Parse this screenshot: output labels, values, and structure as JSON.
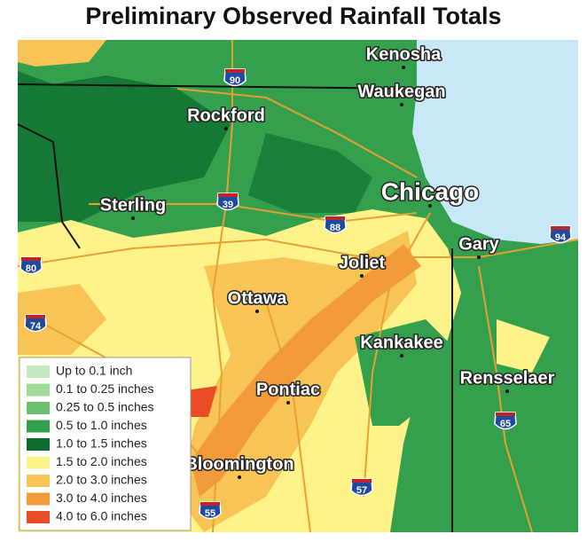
{
  "header": {
    "title": "Preliminary Observed Rainfall Totals"
  },
  "cities": [
    {
      "label": "Kenosha"
    },
    {
      "label": "Waukegan"
    },
    {
      "label": "Rockford"
    },
    {
      "label": "Chicago"
    },
    {
      "label": "Sterling"
    },
    {
      "label": "Gary"
    },
    {
      "label": "Joliet"
    },
    {
      "label": "Ottawa"
    },
    {
      "label": "Kankakee"
    },
    {
      "label": "Rensselaer"
    },
    {
      "label": "Pontiac"
    },
    {
      "label": "Bloomington"
    }
  ],
  "interstates": [
    {
      "label": "90"
    },
    {
      "label": "39"
    },
    {
      "label": "88"
    },
    {
      "label": "80"
    },
    {
      "label": "94"
    },
    {
      "label": "74"
    },
    {
      "label": "65"
    },
    {
      "label": "57"
    },
    {
      "label": "55"
    }
  ],
  "legend": {
    "items": [
      {
        "label": "Up to 0.1 inch",
        "color": "#c7e9c0"
      },
      {
        "label": "0.1 to 0.25 inches",
        "color": "#a1d99b"
      },
      {
        "label": "0.25 to 0.5 inches",
        "color": "#6cc070"
      },
      {
        "label": "0.5 to 1.0 inches",
        "color": "#34a04e"
      },
      {
        "label": "1.0 to 1.5 inches",
        "color": "#0b6b2c"
      },
      {
        "label": "1.5 to 2.0 inches",
        "color": "#fdf38a"
      },
      {
        "label": "2.0 to 3.0 inches",
        "color": "#f8c455"
      },
      {
        "label": "3.0 to 4.0 inches",
        "color": "#f39a3c"
      },
      {
        "label": "4.0 to 6.0 inches",
        "color": "#ea4b27"
      }
    ]
  }
}
